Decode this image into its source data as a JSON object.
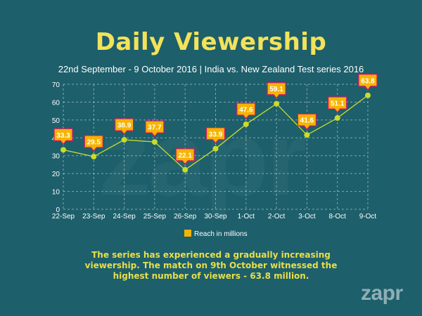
{
  "title": "Daily Viewership",
  "subtitle": "22nd September - 9 October 2016 | India vs. New Zealand Test series 2016",
  "caption": "The series has experienced a gradually increasing viewership. The match on 9th October witnessed the highest number of viewers - 63.8 million.",
  "brand": "zapr",
  "colors": {
    "background": "#1d5f6b",
    "title": "#f3e25a",
    "marker": "#c9dc2b",
    "line": "#c9dc2b",
    "label_fill": "#f5b400",
    "label_border": "#d8166b",
    "legend_swatch": "#f5b400"
  },
  "chart_data": {
    "type": "line",
    "title": "Daily Viewership",
    "xlabel": "",
    "ylabel": "",
    "ylim": [
      0,
      70
    ],
    "yticks": [
      0,
      10,
      20,
      30,
      40,
      50,
      60,
      70
    ],
    "grid": true,
    "legend_position": "bottom",
    "categories": [
      "22-Sep",
      "23-Sep",
      "24-Sep",
      "25-Sep",
      "26-Sep",
      "30-Sep",
      "1-Oct",
      "2-Oct",
      "3-Oct",
      "8-Oct",
      "9-Oct"
    ],
    "series": [
      {
        "name": "Reach in millions",
        "values": [
          33.3,
          29.5,
          38.9,
          37.7,
          22.1,
          33.9,
          47.6,
          59.1,
          41.6,
          51.1,
          63.8
        ]
      }
    ]
  }
}
